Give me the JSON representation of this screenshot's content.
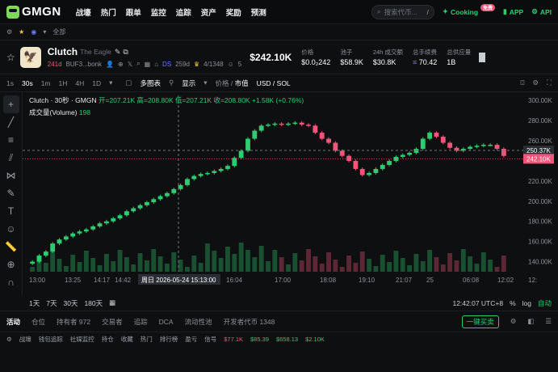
{
  "nav": {
    "logo": "GMGN",
    "menu": [
      "战壕",
      "热门",
      "跟单",
      "监控",
      "追踪",
      "资产",
      "奖励",
      "预测"
    ],
    "search_placeholder": "搜索代币...",
    "search_shortcut": "/",
    "cooking": "Cooking",
    "cooking_badge": "免费",
    "app": "APP",
    "api": "API"
  },
  "subbar": {
    "all": "全部"
  },
  "token": {
    "name": "Clutch",
    "subtitle": "The Eagle",
    "age": "241d",
    "address": "BUF3...bonk",
    "ds": "DS",
    "ds_time": "259d",
    "holders_ratio": "4/1348",
    "count": "5",
    "price": "$242.10K",
    "stats": [
      {
        "key": "价格",
        "value": "$0.0₂242"
      },
      {
        "key": "池子",
        "value": "$58.9K"
      },
      {
        "key": "24h 成交额",
        "value": "$30.8K"
      },
      {
        "key": "总手续费",
        "value": "70.42"
      },
      {
        "key": "总供应量",
        "value": "1B"
      }
    ]
  },
  "toolbar": {
    "intervals": [
      "1s",
      "30s",
      "1m",
      "1H",
      "4H",
      "1D"
    ],
    "selected": "30s",
    "multi": "多图表",
    "display": "显示",
    "price_mode": "价格",
    "mcap_mode": "市值",
    "currency": "USD / SOL"
  },
  "chart_data": {
    "type": "candlestick",
    "title": "Clutch · 30秒 · GMGN",
    "ohlc": "开=207.21K 高=208.80K 低=207.21K 收=208.80K +1.58K (+0.76%)",
    "volume_label": "成交量(Volume)",
    "volume_value": "198",
    "y_ticks": [
      "300.00K",
      "280.00K",
      "260.00K",
      "240.00K",
      "220.00K",
      "200.00K",
      "180.00K",
      "160.00K",
      "140.00K"
    ],
    "x_ticks": [
      "13:00",
      "13:25",
      "14:17",
      "14:42",
      "16:04",
      "17:00",
      "18:08",
      "19:10",
      "21:07",
      "25",
      "06:08",
      "12:02",
      "12:"
    ],
    "crosshair_date": "周日 2026-05-24   15:13:00",
    "crosshair_price": "250.37K",
    "last_price": "242.10K",
    "close_values": [
      140,
      146,
      150,
      158,
      162,
      165,
      168,
      170,
      172,
      175,
      178,
      180,
      183,
      186,
      190,
      193,
      196,
      199,
      202,
      205,
      208,
      212,
      216,
      222,
      225,
      227,
      228,
      230,
      232,
      235,
      243,
      250,
      262,
      270,
      275,
      276,
      277,
      276,
      277,
      278,
      276,
      275,
      268,
      262,
      258,
      250,
      245,
      240,
      232,
      226,
      228,
      232,
      236,
      240,
      244,
      246,
      248,
      252,
      262,
      268,
      264,
      258,
      253,
      250,
      252,
      254,
      255,
      256,
      256,
      252,
      245
    ]
  },
  "bottom_ctl": {
    "ranges": [
      "1天",
      "7天",
      "30天",
      "180天"
    ],
    "clock": "12:42:07 UTC+8",
    "pct": "%",
    "log": "log",
    "auto": "自动"
  },
  "tabs": {
    "items": [
      "活动",
      "仓位",
      "持有者 972",
      "交易者",
      "追踪",
      "DCA",
      "流动性池",
      "开发者代币 1348"
    ],
    "buy": "一键买卖"
  },
  "footer": {
    "items": [
      "战壕",
      "钱包追踪",
      "社媒监控",
      "持仓",
      "收藏",
      "热门",
      "排行榜",
      "盈亏",
      "信号"
    ],
    "prices": [
      "$77.1K",
      "$85.39",
      "$658.13",
      "$2.10K"
    ],
    "colors": {
      "up": "#2ecc71",
      "down": "#f2557a"
    }
  }
}
